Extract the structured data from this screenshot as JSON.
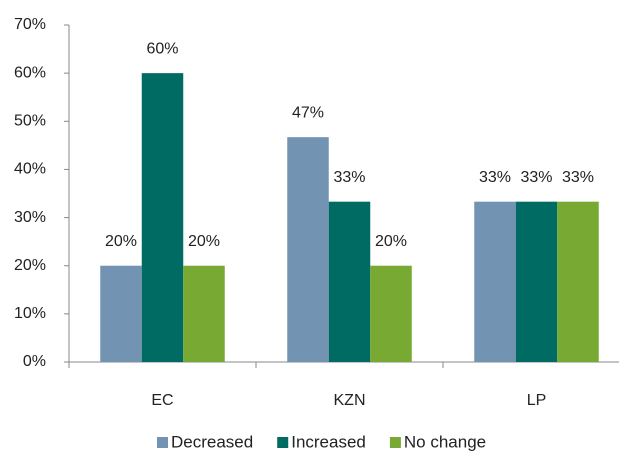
{
  "chart_data": {
    "type": "bar",
    "categories": [
      "EC",
      "KZN",
      "LP"
    ],
    "series": [
      {
        "name": "Decreased",
        "color": "#7393b3",
        "values": [
          20,
          46.7,
          33.3
        ],
        "value_labels": [
          "20%",
          "47%",
          "33%"
        ]
      },
      {
        "name": "Increased",
        "color": "#006b63",
        "values": [
          60,
          33.3,
          33.3
        ],
        "value_labels": [
          "60%",
          "33%",
          "33%"
        ]
      },
      {
        "name": "No change",
        "color": "#77a933",
        "values": [
          20,
          20,
          33.3
        ],
        "value_labels": [
          "20%",
          "20%",
          "33%"
        ]
      }
    ],
    "ylim": [
      0,
      70
    ],
    "yticks": [
      {
        "value": 0,
        "label": "0%"
      },
      {
        "value": 10,
        "label": "10%"
      },
      {
        "value": 20,
        "label": "20%"
      },
      {
        "value": 30,
        "label": "30%"
      },
      {
        "value": 40,
        "label": "40%"
      },
      {
        "value": 50,
        "label": "50%"
      },
      {
        "value": 60,
        "label": "60%"
      },
      {
        "value": 70,
        "label": "70%"
      }
    ],
    "grid": false,
    "legend": "bottom"
  }
}
